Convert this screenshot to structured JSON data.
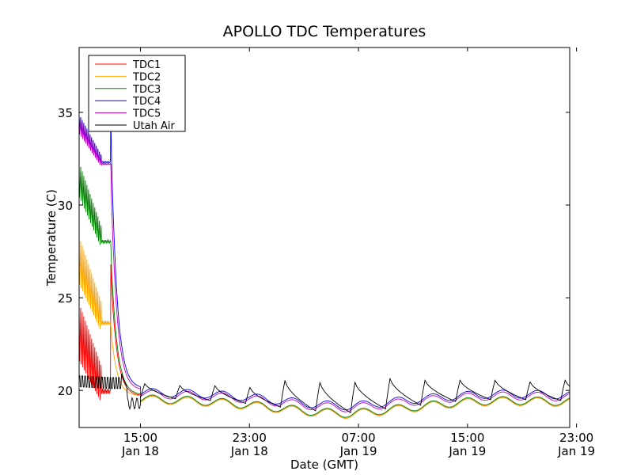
{
  "chart_data": {
    "type": "line",
    "title": "APOLLO TDC Temperatures",
    "xlabel": "Date (GMT)",
    "ylabel": "Temperature (C)",
    "xlim": [
      10.5,
      46.5
    ],
    "ylim": [
      18,
      38.5
    ],
    "x_unit": "hours since 00:00 Jan 18 (GMT)",
    "xticks": [
      {
        "x": 15,
        "time": "15:00",
        "date": "Jan 18"
      },
      {
        "x": 23,
        "time": "23:00",
        "date": "Jan 18"
      },
      {
        "x": 31,
        "time": "07:00",
        "date": "Jan 19"
      },
      {
        "x": 39,
        "time": "15:00",
        "date": "Jan 19"
      },
      {
        "x": 47,
        "time": "23:00",
        "date": "Jan 19"
      }
    ],
    "yticks": [
      20,
      25,
      30,
      35
    ],
    "legend_position": "top-left",
    "series": [
      {
        "name": "TDC1",
        "color": "#ff0000",
        "start": 22.5,
        "osc_end": 19.9,
        "osc_amp": 2.2,
        "drop_x": 12.8,
        "drop_peak": 26.8,
        "daily_base": [
          19.5,
          19.45,
          19.35,
          19.2,
          19.0,
          18.8,
          18.7,
          18.9,
          19.1,
          19.3,
          19.4,
          19.4,
          19.35
        ]
      },
      {
        "name": "TDC2",
        "color": "#ffa500",
        "start": 26.5,
        "osc_end": 23.6,
        "osc_amp": 1.8,
        "drop_x": 12.8,
        "drop_peak": 23.6,
        "daily_base": [
          19.5,
          19.45,
          19.35,
          19.2,
          19.0,
          18.8,
          18.7,
          18.9,
          19.1,
          19.3,
          19.4,
          19.4,
          19.35
        ]
      },
      {
        "name": "TDC3",
        "color": "#008000",
        "start": 31.0,
        "osc_end": 28.0,
        "osc_amp": 1.3,
        "drop_x": 12.8,
        "drop_peak": 28.0,
        "daily_base": [
          19.55,
          19.5,
          19.4,
          19.25,
          19.05,
          18.85,
          18.75,
          18.95,
          19.15,
          19.35,
          19.45,
          19.45,
          19.4
        ]
      },
      {
        "name": "TDC4",
        "color": "#0000ff",
        "start": 34.3,
        "osc_end": 32.3,
        "osc_amp": 0.6,
        "drop_x": 12.8,
        "drop_peak": 35.0,
        "daily_base": [
          19.9,
          19.85,
          19.8,
          19.65,
          19.45,
          19.25,
          19.15,
          19.35,
          19.55,
          19.7,
          19.8,
          19.8,
          19.75
        ]
      },
      {
        "name": "TDC5",
        "color": "#bf00bf",
        "start": 34.1,
        "osc_end": 32.2,
        "osc_amp": 0.6,
        "drop_x": 12.8,
        "drop_peak": 32.2,
        "daily_base": [
          19.8,
          19.75,
          19.7,
          19.55,
          19.35,
          19.15,
          19.05,
          19.25,
          19.45,
          19.6,
          19.7,
          19.7,
          19.65
        ]
      },
      {
        "name": "Utah Air",
        "color": "#000000",
        "start": 20.5,
        "osc_end": 20.4,
        "osc_amp": 0.5,
        "drop_x": 13.6,
        "drop_peak": 20.9,
        "daily_peaks": [
          20.4,
          20.3,
          20.3,
          20.2,
          20.6,
          20.5,
          20.5,
          20.7,
          20.6,
          20.6,
          20.6,
          20.5,
          20.6
        ],
        "daily_base": [
          19.6,
          19.55,
          19.45,
          19.3,
          19.1,
          18.9,
          18.8,
          19.0,
          19.2,
          19.4,
          19.5,
          19.5,
          19.45
        ]
      }
    ],
    "cycle_start_x": 15.0,
    "cycle_period": 2.57
  }
}
